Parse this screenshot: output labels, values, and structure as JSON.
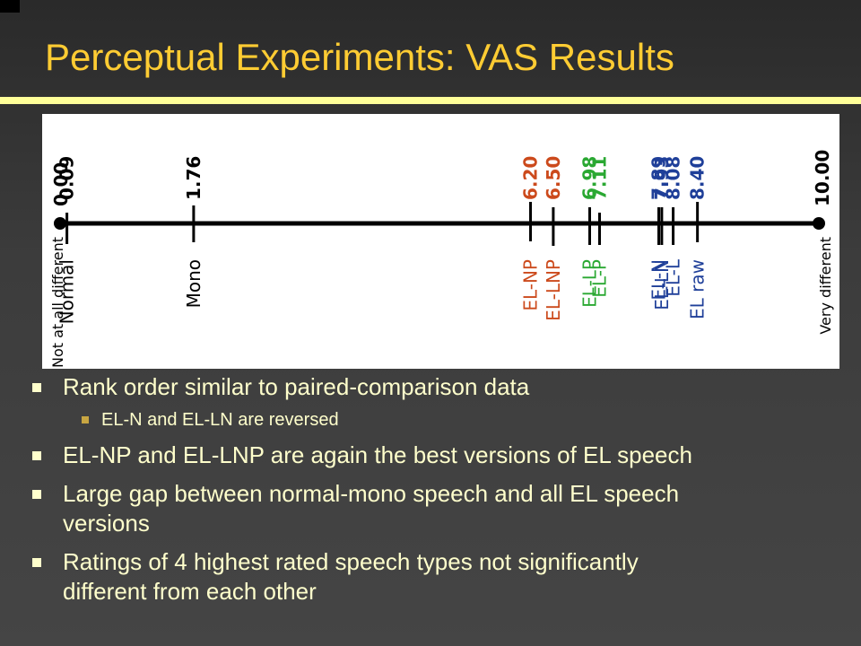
{
  "slide": {
    "title": "Perceptual Experiments: VAS Results"
  },
  "figure": {
    "scale_left": {
      "value": "0.00",
      "label": "Not at all different"
    },
    "scale_right": {
      "value": "10.00",
      "label": "Very different"
    },
    "markers": [
      {
        "value": "0.09",
        "label": "Normal",
        "group": "natural",
        "color": "#000000"
      },
      {
        "value": "1.76",
        "label": "Mono",
        "group": "natural",
        "color": "#000000"
      },
      {
        "value": "6.20",
        "label": "EL-NP",
        "group": "el-p",
        "color": "#cc4a1c"
      },
      {
        "value": "6.50",
        "label": "EL-LNP",
        "group": "el-p",
        "color": "#cc4a1c"
      },
      {
        "value": "6.98",
        "label": "EL-LP",
        "group": "el-lp",
        "color": "#2aa832"
      },
      {
        "value": "7.11",
        "label": "EL-P",
        "group": "el-lp",
        "color": "#2aa832"
      },
      {
        "value": "7.89",
        "label": "EL-N",
        "group": "el-n",
        "color": "#1f3f99"
      },
      {
        "value": "7.93",
        "label": "EL-LN",
        "group": "el-n",
        "color": "#1f3f99"
      },
      {
        "value": "8.08",
        "label": "EL-L",
        "group": "el-n",
        "color": "#1f3f99"
      },
      {
        "value": "8.40",
        "label": "EL raw",
        "group": "el-n",
        "color": "#1f3f99"
      }
    ]
  },
  "bullets": [
    {
      "level": 1,
      "text": "Rank order similar to paired-comparison data"
    },
    {
      "level": 2,
      "text": "EL-N and EL-LN are reversed"
    },
    {
      "level": 1,
      "text": "EL-NP and EL-LNP are again the best versions of EL speech"
    },
    {
      "level": 1,
      "text": "Large gap between normal-mono speech and all EL speech"
    },
    {
      "level": 1,
      "text": "versions",
      "continuation": true
    },
    {
      "level": 1,
      "text": "Ratings of 4 highest rated speech types not significantly"
    },
    {
      "level": 1,
      "text": "different from each other",
      "continuation": true
    }
  ],
  "colors": {
    "background": "#3c3c3c",
    "title": "#ffcc33",
    "rule": "#ffff99",
    "text": "#ffffcc",
    "sub_bullet": "#c8a642"
  }
}
